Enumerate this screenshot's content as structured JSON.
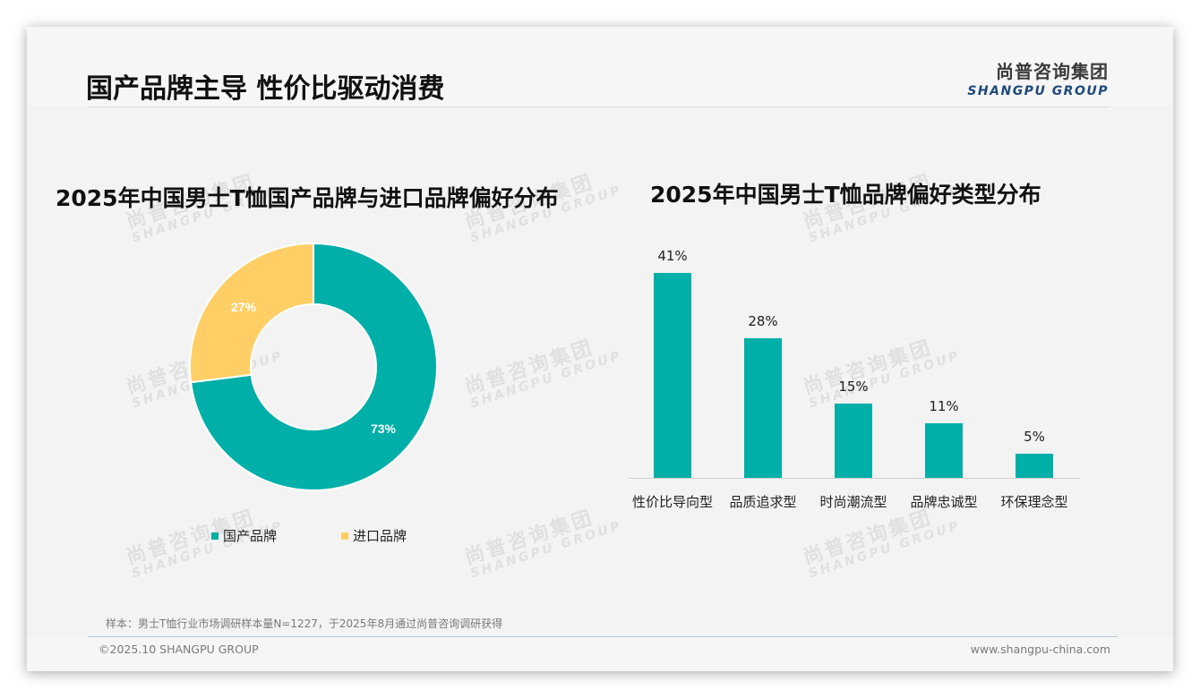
{
  "header": {
    "title": "国产品牌主导 性价比驱动消费",
    "logo_cn": "尚普咨询集团",
    "logo_en": "SHANGPU GROUP"
  },
  "watermark": {
    "cn": "尚普咨询集团",
    "en": "SHANGPU GROUP"
  },
  "colors": {
    "teal": "#00AFA8",
    "yellow": "#FFCF66"
  },
  "chart_data": [
    {
      "type": "pie",
      "title": "2025年中国男士T恤国产品牌与进口品牌偏好分布",
      "categories": [
        "国产品牌",
        "进口品牌"
      ],
      "values": [
        73,
        27
      ],
      "value_labels": [
        "73%",
        "27%"
      ],
      "colors": [
        "#00AFA8",
        "#FFCF66"
      ],
      "donut": true,
      "legend_position": "bottom"
    },
    {
      "type": "bar",
      "title": "2025年中国男士T恤品牌偏好类型分布",
      "categories": [
        "性价比导向型",
        "品质追求型",
        "时尚潮流型",
        "品牌忠诚型",
        "环保理念型"
      ],
      "values": [
        41,
        28,
        15,
        11,
        5
      ],
      "value_labels": [
        "41%",
        "28%",
        "15%",
        "11%",
        "5%"
      ],
      "color": "#00AFA8",
      "xlabel": "",
      "ylabel": "",
      "ylim": [
        0,
        45
      ],
      "grid": false
    }
  ],
  "donut": {
    "labels": {
      "domestic": "73%",
      "imported": "27%"
    }
  },
  "legend": [
    {
      "label": "国产品牌",
      "color": "#00AFA8"
    },
    {
      "label": "进口品牌",
      "color": "#FFCF66"
    }
  ],
  "bars": [
    {
      "label": "性价比导向型",
      "value": 41,
      "text": "41%"
    },
    {
      "label": "品质追求型",
      "value": 28,
      "text": "28%"
    },
    {
      "label": "时尚潮流型",
      "value": 15,
      "text": "15%"
    },
    {
      "label": "品牌忠诚型",
      "value": 11,
      "text": "11%"
    },
    {
      "label": "环保理念型",
      "value": 5,
      "text": "5%"
    }
  ],
  "footer": {
    "note": "样本：男士T恤行业市场调研样本量N=1227，于2025年8月通过尚普咨询调研获得",
    "copyright": "©2025.10 SHANGPU GROUP",
    "website": "www.shangpu-china.com"
  }
}
